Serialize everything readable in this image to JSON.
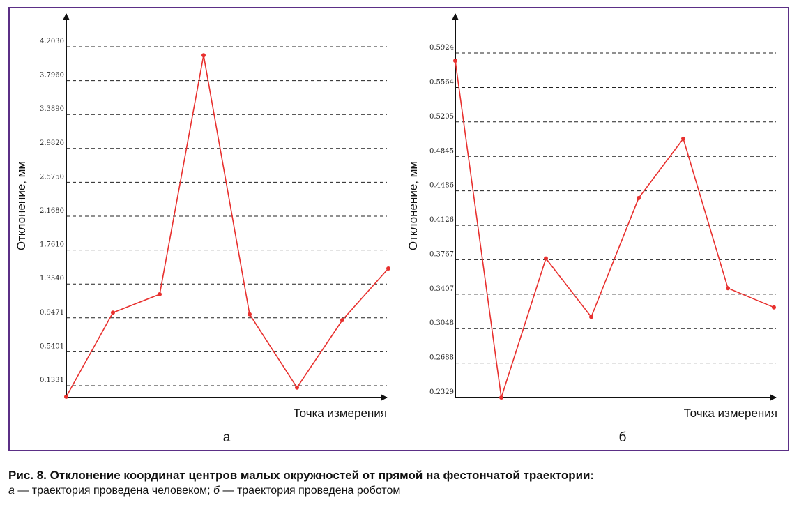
{
  "caption": {
    "title": "Рис. 8. Отклонение координат центров малых окружностей от прямой на фестончатой траектории:",
    "a_letter": "а",
    "a_text": " — траектория проведена человеком; ",
    "b_letter": "б",
    "b_text": " — траектория проведена роботом"
  },
  "colors": {
    "line": "#e8302e",
    "frame": "#5b2f86",
    "axis": "#111111",
    "grid": "#222222"
  },
  "chart_data": [
    {
      "type": "line",
      "panel_label": "а",
      "ylabel": "Отклонение, мм",
      "xlabel": "Точка измерения",
      "ylim": [
        0.0,
        4.203
      ],
      "yticks": [
        0.1331,
        0.5401,
        0.9471,
        1.354,
        1.761,
        2.168,
        2.575,
        2.982,
        3.389,
        3.796,
        4.203
      ],
      "ytick_labels": [
        "0.1331",
        "0.5401",
        "0.9471",
        "1.3540",
        "1.7610",
        "2.1680",
        "2.5750",
        "2.9820",
        "3.3890",
        "3.7960",
        "4.2030"
      ],
      "grid": true,
      "x": [
        1,
        2,
        3,
        4,
        5,
        6,
        7,
        8
      ],
      "series": [
        {
          "values": [
            0.0,
            1.01,
            1.23,
            4.1,
            0.99,
            0.11,
            0.92,
            1.54
          ]
        }
      ]
    },
    {
      "type": "line",
      "panel_label": "б",
      "ylabel": "Отклонение, мм",
      "xlabel": "Точка измерения",
      "ylim": [
        0.2329,
        0.5924
      ],
      "yticks": [
        0.2329,
        0.2688,
        0.3048,
        0.3407,
        0.3767,
        0.4126,
        0.4486,
        0.4845,
        0.5205,
        0.5564,
        0.5924
      ],
      "ytick_labels": [
        "0.2329",
        "0.2688",
        "0.3048",
        "0.3407",
        "0.3767",
        "0.4126",
        "0.4486",
        "0.4845",
        "0.5205",
        "0.5564",
        "0.5924"
      ],
      "grid": true,
      "x": [
        1,
        2,
        3,
        4,
        5,
        6,
        7,
        8
      ],
      "series": [
        {
          "values": [
            0.5843,
            0.2329,
            0.378,
            0.317,
            0.441,
            0.503,
            0.347,
            0.327
          ]
        }
      ]
    }
  ]
}
